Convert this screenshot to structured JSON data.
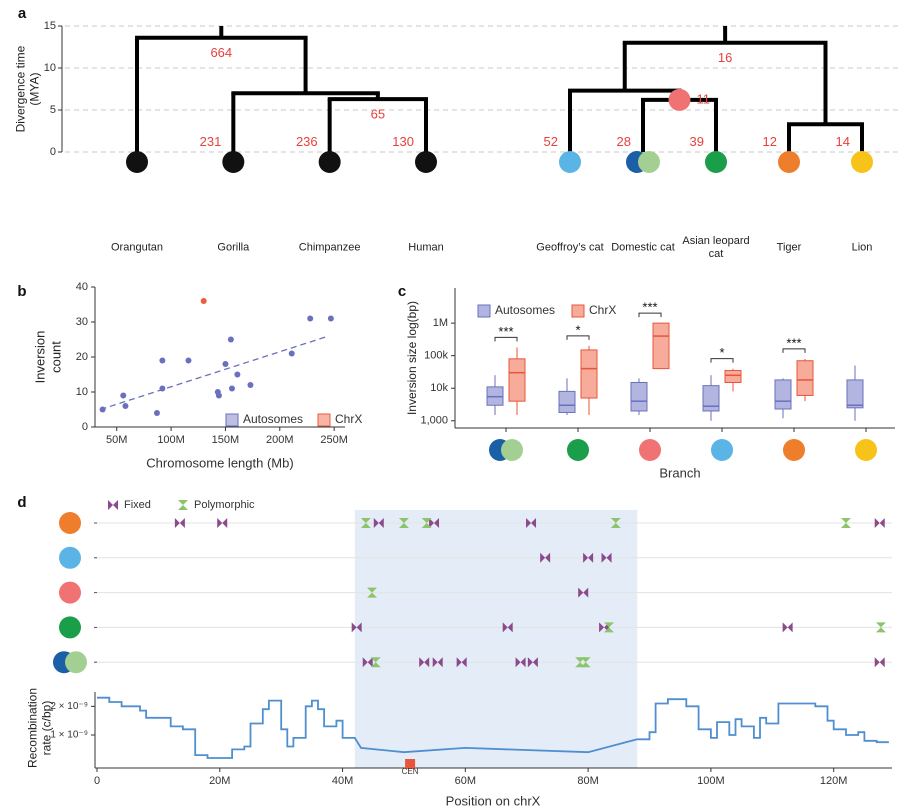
{
  "chart_data": [
    {
      "type": "dendrogram",
      "panel": "a",
      "y_label": "Divergence time (MYA)",
      "ylim": [
        0,
        15
      ],
      "yticks": [
        0,
        5,
        10,
        15
      ],
      "grid": true,
      "trees": [
        {
          "height": 13.6,
          "count": 664,
          "children": [
            {
              "name": "Orangutan",
              "colors": [
                "#111111"
              ]
            },
            {
              "height": 7.0,
              "children": [
                {
                  "name": "Gorilla",
                  "count": 231,
                  "colors": [
                    "#111111"
                  ]
                },
                {
                  "height": 6.3,
                  "count": 65,
                  "children": [
                    {
                      "name": "Chimpanzee",
                      "count": 236,
                      "colors": [
                        "#111111"
                      ]
                    },
                    {
                      "name": "Human",
                      "count": 130,
                      "colors": [
                        "#111111"
                      ]
                    }
                  ]
                }
              ]
            }
          ]
        },
        {
          "height": 13.0,
          "count": 16,
          "children": [
            {
              "height": 7.3,
              "children": [
                {
                  "name": "Geoffroy’s cat",
                  "count": 52,
                  "colors": [
                    "#5ab4e5"
                  ]
                },
                {
                  "height": 6.2,
                  "count": 11,
                  "node_color": "#f07272",
                  "children": [
                    {
                      "name": "Domestic cat",
                      "count": 28,
                      "colors": [
                        "#1b5fa6",
                        "#a3cf93"
                      ]
                    },
                    {
                      "name": "Asian leopard cat",
                      "count": 39,
                      "colors": [
                        "#1a9e4a"
                      ]
                    }
                  ]
                }
              ]
            },
            {
              "height": 3.3,
              "children": [
                {
                  "name": "Tiger",
                  "count": 12,
                  "colors": [
                    "#ee7d2c"
                  ]
                },
                {
                  "name": "Lion",
                  "count": 14,
                  "colors": [
                    "#f7c21a"
                  ]
                }
              ]
            }
          ]
        }
      ]
    },
    {
      "type": "scatter",
      "panel": "b",
      "x_label": "Chromosome length (Mb)",
      "y_label": "Inversion count",
      "xlim": [
        30,
        260
      ],
      "xticks": [
        {
          "value": 50,
          "label": "50M"
        },
        {
          "value": 100,
          "label": "100M"
        },
        {
          "value": 150,
          "label": "150M"
        },
        {
          "value": 200,
          "label": "200M"
        },
        {
          "value": 250,
          "label": "250M"
        }
      ],
      "ylim": [
        0,
        40
      ],
      "yticks": [
        0,
        10,
        20,
        30,
        40
      ],
      "legend": "lower right",
      "series": [
        {
          "name": "Autosomes",
          "color": "#6a70bd",
          "x": [
            37,
            56,
            58,
            87,
            92,
            92,
            116,
            143,
            144,
            150,
            155,
            156,
            161,
            173,
            211,
            228,
            247
          ],
          "values": [
            5,
            9,
            6,
            4,
            11,
            19,
            19,
            10,
            9,
            18,
            25,
            11,
            15,
            12,
            21,
            31,
            31
          ]
        },
        {
          "name": "ChrX",
          "color": "#ee5b3f",
          "x": [
            130
          ],
          "values": [
            36
          ]
        }
      ],
      "trend_line": {
        "x": [
          35,
          245
        ],
        "values": [
          5,
          26
        ],
        "color": "#6a70bd"
      }
    },
    {
      "type": "box",
      "panel": "c",
      "x_label": "Branch",
      "y_label": "Inversion size log(bp)",
      "log_y": true,
      "ylim": [
        600,
        12000000
      ],
      "yticks": [
        {
          "value": 1000,
          "label": "1,000"
        },
        {
          "value": 10000,
          "label": "10k"
        },
        {
          "value": 100000,
          "label": "100k"
        },
        {
          "value": 1000000,
          "label": "1M"
        }
      ],
      "legend": "upper left",
      "categories": [
        null,
        null,
        null,
        null,
        null,
        null
      ],
      "category_colors": [
        [
          "#1b5fa6",
          "#a3cf93"
        ],
        [
          "#1a9e4a"
        ],
        [
          "#f07272"
        ],
        [
          "#5ab4e5"
        ],
        [
          "#ee7d2c"
        ],
        [
          "#f7c21a"
        ]
      ],
      "annotations": [
        "***",
        "*",
        "***",
        "*",
        "***",
        null
      ],
      "series": [
        {
          "name": "Autosomes",
          "color": "#b3b5e1",
          "edge_color": "#6a70bd",
          "boxes": [
            {
              "whislo": 1500,
              "q1": 3000,
              "med": 5500,
              "q3": 11000,
              "whishi": 25000
            },
            {
              "whislo": 1500,
              "q1": 1800,
              "med": 3000,
              "q3": 8000,
              "whishi": 20000
            },
            {
              "whislo": 1500,
              "q1": 2000,
              "med": 4000,
              "q3": 15000,
              "whishi": 20000
            },
            {
              "whislo": 1000,
              "q1": 2000,
              "med": 2800,
              "q3": 12000,
              "whishi": 25000
            },
            {
              "whislo": 1200,
              "q1": 2300,
              "med": 4000,
              "q3": 18000,
              "whishi": 20000
            },
            {
              "whislo": 1000,
              "q1": 2500,
              "med": 3000,
              "q3": 18000,
              "whishi": 50000
            }
          ]
        },
        {
          "name": "ChrX",
          "color": "#f6ab9b",
          "edge_color": "#e8553a",
          "boxes": [
            {
              "whislo": 1500,
              "q1": 4000,
              "med": 30000,
              "q3": 80000,
              "whishi": 180000
            },
            {
              "whislo": 1500,
              "q1": 5000,
              "med": 40000,
              "q3": 150000,
              "whishi": 200000
            },
            {
              "whislo": 40000,
              "q1": 40000,
              "med": 400000,
              "q3": 1000000,
              "whishi": 1000000
            },
            {
              "whislo": 8000,
              "q1": 15000,
              "med": 25000,
              "q3": 35000,
              "whishi": 40000
            },
            {
              "whislo": 4000,
              "q1": 6000,
              "med": 18000,
              "q3": 70000,
              "whishi": 80000
            },
            null
          ]
        }
      ]
    },
    {
      "type": "inversion_track",
      "panel": "d",
      "xlim": [
        0,
        129.5
      ],
      "highlight_range": [
        42,
        88
      ],
      "series": [
        {
          "name": "Fixed",
          "color": "#8b4a8c",
          "shape": "bowtie"
        },
        {
          "name": "Polymorphic",
          "color": "#8cc46c",
          "shape": "hourglass"
        }
      ],
      "rows": [
        {
          "colors": [
            "#ee7d2c"
          ],
          "positions": [
            [
              13.5,
              20.4,
              45.9,
              54.9,
              70.7,
              127.5
            ],
            [
              43.8,
              50,
              53.7,
              84.5,
              122
            ]
          ]
        },
        {
          "colors": [
            "#5ab4e5"
          ],
          "positions": [
            [
              73,
              80,
              83
            ],
            []
          ]
        },
        {
          "colors": [
            "#f07272"
          ],
          "positions": [
            [
              79.2
            ],
            [
              44.8
            ]
          ]
        },
        {
          "colors": [
            "#1a9e4a"
          ],
          "positions": [
            [
              42.3,
              66.9,
              82.6,
              112.5
            ],
            [
              83.4,
              127.7
            ]
          ]
        },
        {
          "colors": [
            "#1b5fa6",
            "#a3cf93"
          ],
          "positions": [
            [
              44.1,
              53.3,
              55.5,
              59.4,
              69,
              71,
              127.5
            ],
            [
              45.4,
              78.7,
              79.6
            ]
          ]
        }
      ]
    },
    {
      "type": "line",
      "x_label": "Position on chrX",
      "y_label": "Recombination rate (c/bp)",
      "color": "#4f8fd0",
      "xlim": [
        0,
        129.5
      ],
      "xticks": [
        0,
        {
          "value": 20,
          "label": "20M"
        },
        {
          "value": 40,
          "label": "40M"
        },
        {
          "value": 60,
          "label": "60M"
        },
        {
          "value": 80,
          "label": "80M"
        },
        {
          "value": 100,
          "label": "100M"
        },
        {
          "value": 120,
          "label": "120M"
        }
      ],
      "ylim": [
        -1.5e-10,
        2.5e-09
      ],
      "yticks": [
        {
          "value": 2e-09,
          "label": "2 × 10⁻⁹"
        },
        {
          "value": 1e-09,
          "label": "1 × 10⁻⁹"
        }
      ],
      "centromere": {
        "label": "CEN",
        "x": 51,
        "color": "#e8553a"
      },
      "x": [
        0,
        2,
        2,
        4,
        4,
        7,
        7,
        8,
        8,
        12,
        12,
        14,
        14,
        16,
        16,
        18,
        18,
        22,
        22,
        24,
        24,
        25,
        25,
        27,
        27,
        28,
        28,
        30,
        30,
        31,
        31,
        32,
        32,
        34,
        34,
        35,
        35,
        36,
        36,
        37,
        37,
        39,
        39,
        40,
        40,
        42,
        43,
        50,
        60,
        80,
        88,
        90,
        90,
        91,
        91,
        93,
        93,
        96,
        96,
        98,
        98,
        100,
        100,
        101,
        101,
        103,
        103,
        104,
        104,
        105,
        105,
        107,
        107,
        108,
        108,
        109,
        109,
        111,
        111,
        117,
        117,
        119,
        119,
        120,
        120,
        122,
        122,
        124,
        124,
        125,
        125,
        127,
        127,
        129
      ],
      "values": [
        2.3e-09,
        2.3e-09,
        2.15e-09,
        2.15e-09,
        2e-09,
        2e-09,
        1.85e-09,
        1.85e-09,
        1.6e-09,
        1.6e-09,
        1.3e-09,
        1.3e-09,
        1.2e-09,
        1.2e-09,
        3e-10,
        3e-10,
        2e-10,
        2e-10,
        5e-10,
        5e-10,
        6e-10,
        6e-10,
        1.4e-09,
        1.4e-09,
        1.9e-09,
        1.9e-09,
        2.2e-09,
        2.2e-09,
        1.2e-09,
        1.2e-09,
        6e-10,
        6e-10,
        9e-10,
        9e-10,
        2e-09,
        2e-09,
        2.2e-09,
        2.2e-09,
        1.9e-09,
        1.9e-09,
        1.3e-09,
        1.3e-09,
        1.5e-09,
        1.5e-09,
        9e-10,
        9e-10,
        5.5e-10,
        4e-10,
        5.5e-10,
        4e-10,
        8.5e-10,
        8.5e-10,
        1.1e-09,
        1.1e-09,
        2.1e-09,
        2.1e-09,
        2.25e-09,
        2.25e-09,
        2e-09,
        2e-09,
        1.2e-09,
        1.2e-09,
        9e-10,
        9e-10,
        1.45e-09,
        1.45e-09,
        1e-09,
        1e-09,
        1.55e-09,
        1.55e-09,
        1.3e-09,
        1.3e-09,
        9e-10,
        9e-10,
        1.6e-09,
        1.6e-09,
        1.4e-09,
        1.4e-09,
        2.1e-09,
        2.1e-09,
        2e-09,
        2e-09,
        1.5e-09,
        1.5e-09,
        1.2e-09,
        1.2e-09,
        1e-09,
        1e-09,
        1.1e-09,
        1.1e-09,
        8e-10,
        8e-10,
        7.5e-10,
        7.5e-10
      ]
    }
  ]
}
